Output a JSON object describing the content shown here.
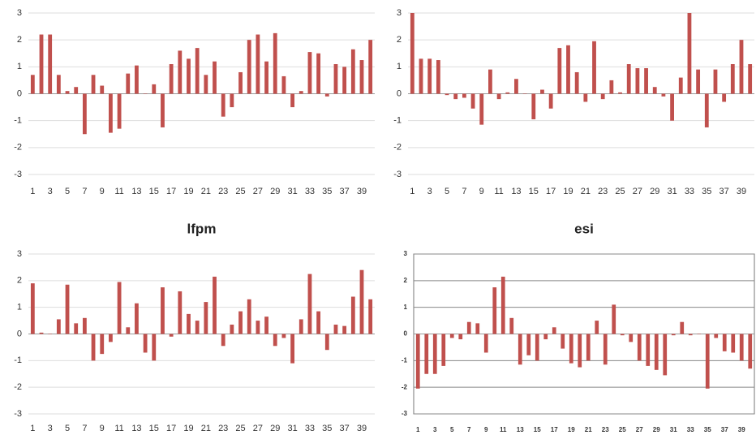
{
  "chart_data": [
    {
      "type": "bar",
      "color": "#c0504d",
      "grid": true,
      "border": false,
      "categories": [
        "1",
        null,
        "3",
        null,
        "5",
        null,
        "7",
        null,
        "9",
        null,
        "11",
        null,
        "13",
        null,
        "15",
        null,
        "17",
        null,
        "19",
        null,
        "21",
        null,
        "23",
        null,
        "25",
        null,
        "27",
        null,
        "29",
        null,
        "31",
        null,
        "33",
        null,
        "35",
        null,
        "37",
        null,
        "39",
        null
      ],
      "values": [
        0.7,
        2.2,
        2.2,
        0.7,
        0.1,
        0.25,
        -1.5,
        0.7,
        0.3,
        -1.45,
        -1.3,
        0.75,
        1.05,
        0.0,
        0.35,
        -1.25,
        1.1,
        1.6,
        1.3,
        1.7,
        0.7,
        1.2,
        -0.85,
        -0.5,
        0.8,
        2.0,
        2.2,
        1.2,
        2.25,
        0.65,
        -0.5,
        0.1,
        1.55,
        1.5,
        -0.1,
        1.1,
        1.0,
        1.65,
        1.25,
        2.0
      ],
      "ylim": [
        -3,
        3
      ],
      "yticks": [
        -3,
        -2,
        -1,
        0,
        1,
        2,
        3
      ]
    },
    {
      "type": "bar",
      "color": "#c0504d",
      "grid": true,
      "border": false,
      "categories": [
        "1",
        null,
        "3",
        null,
        "5",
        null,
        "7",
        null,
        "9",
        null,
        "11",
        null,
        "13",
        null,
        "15",
        null,
        "17",
        null,
        "19",
        null,
        "21",
        null,
        "23",
        null,
        "25",
        null,
        "27",
        null,
        "29",
        null,
        "31",
        null,
        "33",
        null,
        "35",
        null,
        "37",
        null,
        "39",
        null
      ],
      "values": [
        3.0,
        1.3,
        1.3,
        1.25,
        -0.05,
        -0.2,
        -0.15,
        -0.55,
        -1.15,
        0.9,
        -0.2,
        0.05,
        0.55,
        0.0,
        -0.95,
        0.15,
        -0.55,
        1.7,
        1.8,
        0.8,
        -0.3,
        1.95,
        -0.2,
        0.5,
        0.05,
        1.1,
        0.95,
        0.95,
        0.25,
        -0.1,
        -1.0,
        0.6,
        3.0,
        0.9,
        -1.25,
        0.9,
        -0.3,
        1.1,
        2.0,
        1.1
      ],
      "ylim": [
        -3,
        3
      ],
      "yticks": [
        -3,
        -2,
        -1,
        0,
        1,
        2,
        3
      ]
    },
    {
      "type": "bar",
      "title": "lfpm",
      "color": "#c0504d",
      "grid": true,
      "border": false,
      "categories": [
        "1",
        null,
        "3",
        null,
        "5",
        null,
        "7",
        null,
        "9",
        null,
        "11",
        null,
        "13",
        null,
        "15",
        null,
        "17",
        null,
        "19",
        null,
        "21",
        null,
        "23",
        null,
        "25",
        null,
        "27",
        null,
        "29",
        null,
        "31",
        null,
        "33",
        null,
        "35",
        null,
        "37",
        null,
        "39",
        null
      ],
      "values": [
        1.9,
        0.05,
        0.0,
        0.55,
        1.85,
        0.4,
        0.6,
        -1.0,
        -0.75,
        -0.3,
        1.95,
        0.25,
        1.15,
        -0.7,
        -1.0,
        1.75,
        -0.1,
        1.6,
        0.75,
        0.5,
        1.2,
        2.15,
        -0.45,
        0.35,
        0.85,
        1.3,
        0.5,
        0.65,
        -0.45,
        -0.15,
        -1.1,
        0.55,
        2.25,
        0.85,
        -0.6,
        0.35,
        0.3,
        1.4,
        2.4,
        1.3
      ],
      "ylim": [
        -3,
        3
      ],
      "yticks": [
        -3,
        -2,
        -1,
        0,
        1,
        2,
        3
      ]
    },
    {
      "type": "bar",
      "title": "esi",
      "color": "#c0504d",
      "grid": true,
      "border": true,
      "categories": [
        "1",
        null,
        "3",
        null,
        "5",
        null,
        "7",
        null,
        "9",
        null,
        "11",
        null,
        "13",
        null,
        "15",
        null,
        "17",
        null,
        "19",
        null,
        "21",
        null,
        "23",
        null,
        "25",
        null,
        "27",
        null,
        "29",
        null,
        "31",
        null,
        "33",
        null,
        "35",
        null,
        "37",
        null,
        "39",
        null
      ],
      "values": [
        -2.05,
        -1.5,
        -1.5,
        -1.2,
        -0.15,
        -0.2,
        0.45,
        0.4,
        -0.7,
        1.75,
        2.15,
        0.6,
        -1.15,
        -0.8,
        -1.0,
        -0.2,
        0.25,
        -0.55,
        -1.1,
        -1.25,
        -1.0,
        0.5,
        -1.15,
        1.1,
        -0.05,
        -0.3,
        -1.0,
        -1.2,
        -1.35,
        -1.55,
        -0.05,
        0.45,
        -0.05,
        0.0,
        -2.05,
        -0.15,
        -0.65,
        -0.7,
        -1.0,
        -1.3
      ],
      "ylim": [
        -3,
        3
      ],
      "yticks": [
        -3,
        -2,
        -1,
        0,
        1,
        2,
        3
      ]
    }
  ]
}
